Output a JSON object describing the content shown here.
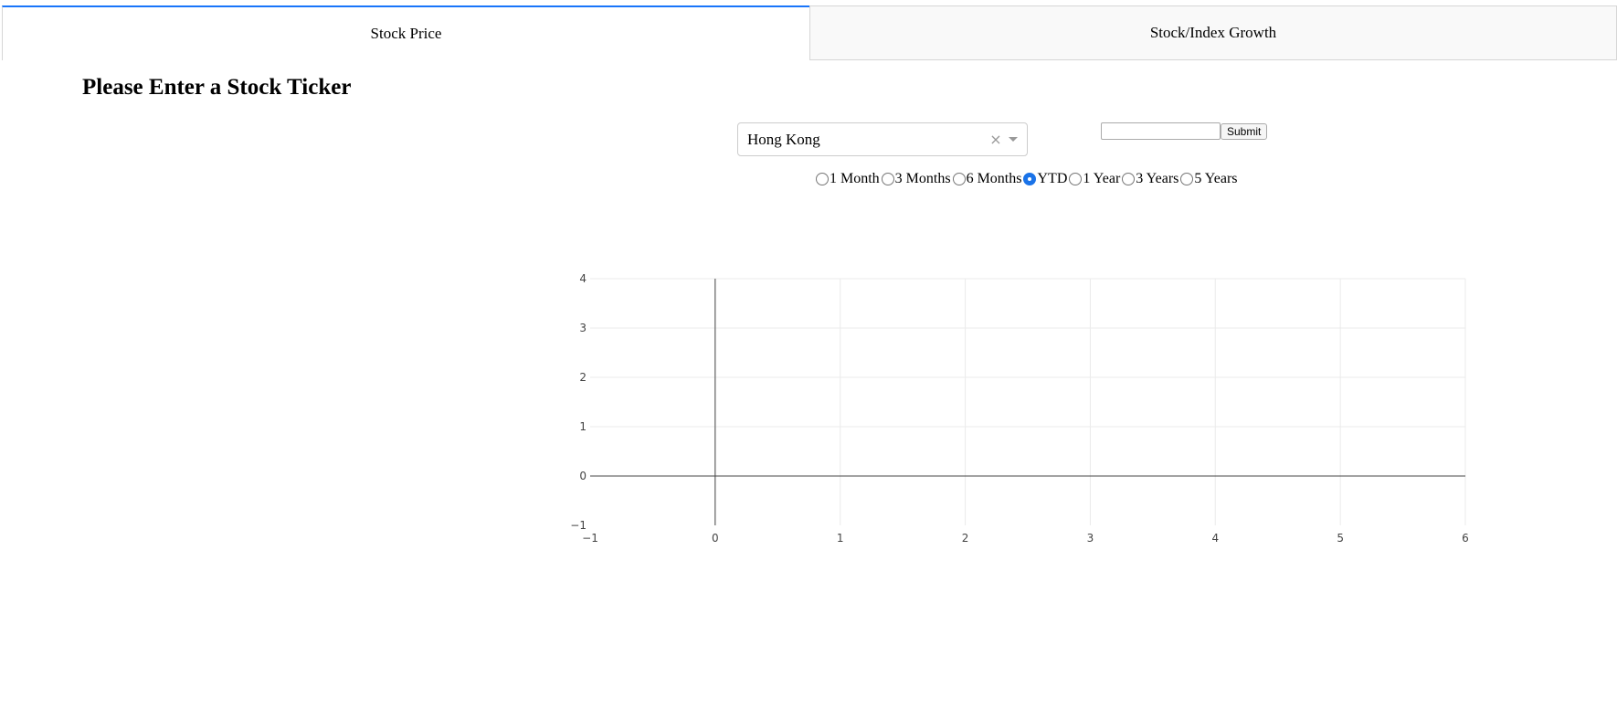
{
  "tabs": [
    {
      "label": "Stock Price",
      "active": true
    },
    {
      "label": "Stock/Index Growth",
      "active": false
    }
  ],
  "heading": "Please Enter a Stock Ticker",
  "market_dropdown": {
    "selected": "Hong Kong"
  },
  "ticker_input": {
    "value": "",
    "placeholder": ""
  },
  "submit_label": "Submit",
  "periods": [
    {
      "label": "1 Month",
      "checked": false
    },
    {
      "label": "3 Months",
      "checked": false
    },
    {
      "label": "6 Months",
      "checked": false
    },
    {
      "label": "YTD",
      "checked": true
    },
    {
      "label": "1 Year",
      "checked": false
    },
    {
      "label": "3 Years",
      "checked": false
    },
    {
      "label": "5 Years",
      "checked": false
    }
  ],
  "colors": {
    "accent": "#1975FA",
    "radio_checked": "#1a73e8"
  },
  "chart_data": {
    "type": "line",
    "series": [],
    "xlim": [
      -1,
      6
    ],
    "ylim": [
      -1,
      4
    ],
    "x_ticks": [
      "−1",
      "0",
      "1",
      "2",
      "3",
      "4",
      "5",
      "6"
    ],
    "y_ticks": [
      "−1",
      "0",
      "1",
      "2",
      "3",
      "4"
    ],
    "grid": true,
    "title": "",
    "xlabel": "",
    "ylabel": ""
  }
}
